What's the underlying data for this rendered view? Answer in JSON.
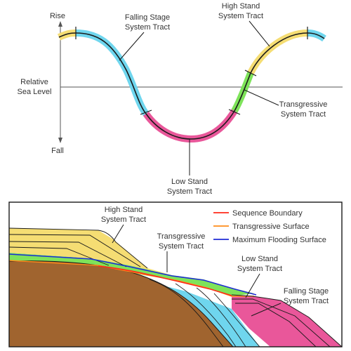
{
  "top_diagram": {
    "axis_rise": "Rise",
    "axis_fall": "Fall",
    "axis_label_line1": "Relative",
    "axis_label_line2": "Sea Level",
    "tract_labels": {
      "falling_stage": [
        "Falling Stage",
        "System Tract"
      ],
      "high_stand": [
        "High Stand",
        "System Tract"
      ],
      "transgressive": [
        "Transgressive",
        "System Tract"
      ],
      "low_stand": [
        "Low Stand",
        "System Tract"
      ]
    }
  },
  "bottom_diagram": {
    "tract_labels": {
      "high_stand": [
        "High Stand",
        "System Tract"
      ],
      "transgressive": [
        "Transgressive",
        "System Tract"
      ],
      "low_stand": [
        "Low Stand",
        "System Tract"
      ],
      "falling_stage": [
        "Falling Stage",
        "System Tract"
      ]
    },
    "legend": [
      {
        "label": "Sequence Boundary",
        "color": "#ff2a1a"
      },
      {
        "label": "Transgressive Surface",
        "color": "#ff8c1a"
      },
      {
        "label": "Maximum Flooding Surface",
        "color": "#1f2bd6"
      }
    ]
  },
  "colors": {
    "high_stand": "#f5dd73",
    "falling_stage": "#6fd6ee",
    "low_stand": "#e9579a",
    "transgressive": "#7ee35a",
    "basement": "#a0642f",
    "curve": "#1a1a1a"
  }
}
